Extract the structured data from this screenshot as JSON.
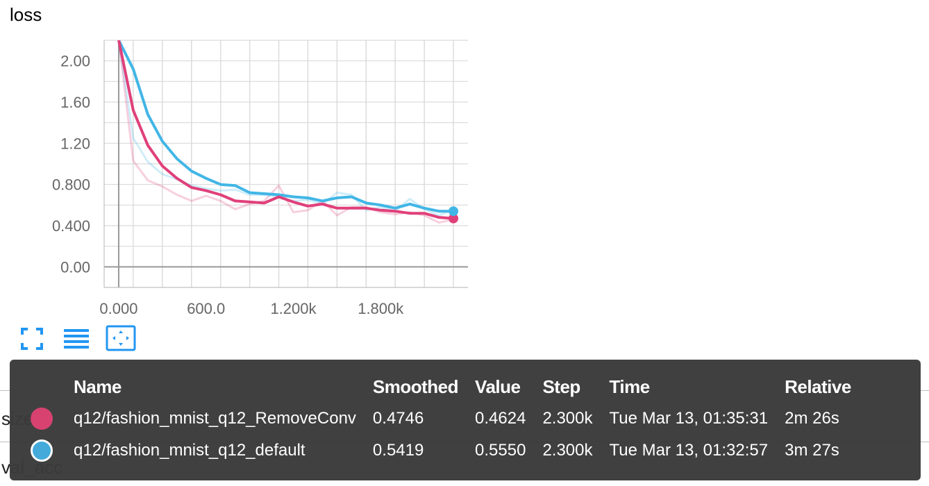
{
  "card": {
    "title": "loss"
  },
  "chart_data": {
    "type": "line",
    "title": "loss",
    "xlabel": "",
    "ylabel": "",
    "xlim": [
      -100,
      2400
    ],
    "ylim": [
      -0.2,
      2.2
    ],
    "x_ticks": [
      "0.000",
      "600.0",
      "1.200k",
      "1.800k"
    ],
    "y_ticks": [
      "2.00",
      "1.60",
      "1.20",
      "0.800",
      "0.400",
      "0.00"
    ],
    "x_tick_values": [
      0,
      600,
      1200,
      1800
    ],
    "y_tick_values": [
      2.0,
      1.6,
      1.2,
      0.8,
      0.4,
      0.0
    ],
    "grid": true,
    "series": [
      {
        "name": "q12/fashion_mnist_q12_RemoveConv",
        "color": "#e0407a",
        "x": [
          0,
          100,
          200,
          300,
          400,
          500,
          600,
          700,
          800,
          900,
          1000,
          1100,
          1200,
          1300,
          1400,
          1500,
          1600,
          1700,
          1800,
          1900,
          2000,
          2100,
          2200,
          2300
        ],
        "raw": [
          2.2,
          1.03,
          0.84,
          0.78,
          0.7,
          0.64,
          0.69,
          0.64,
          0.56,
          0.61,
          0.64,
          0.79,
          0.53,
          0.55,
          0.64,
          0.5,
          0.58,
          0.58,
          0.53,
          0.51,
          0.53,
          0.5,
          0.43,
          0.46
        ],
        "smoothed": [
          2.2,
          1.52,
          1.18,
          0.98,
          0.86,
          0.77,
          0.74,
          0.7,
          0.64,
          0.63,
          0.62,
          0.68,
          0.63,
          0.59,
          0.61,
          0.57,
          0.57,
          0.57,
          0.55,
          0.54,
          0.52,
          0.52,
          0.48,
          0.47
        ]
      },
      {
        "name": "q12/fashion_mnist_q12_default",
        "color": "#41b6e6",
        "x": [
          0,
          100,
          200,
          300,
          400,
          500,
          600,
          700,
          800,
          900,
          1000,
          1100,
          1200,
          1300,
          1400,
          1500,
          1600,
          1700,
          1800,
          1900,
          2000,
          2100,
          2200,
          2300
        ],
        "raw": [
          2.2,
          1.25,
          1.02,
          0.9,
          0.85,
          0.79,
          0.76,
          0.74,
          0.75,
          0.7,
          0.7,
          0.68,
          0.64,
          0.65,
          0.61,
          0.72,
          0.7,
          0.55,
          0.58,
          0.54,
          0.66,
          0.56,
          0.5,
          0.555
        ],
        "smoothed": [
          2.2,
          1.92,
          1.48,
          1.22,
          1.05,
          0.93,
          0.86,
          0.8,
          0.79,
          0.72,
          0.71,
          0.7,
          0.68,
          0.67,
          0.64,
          0.67,
          0.68,
          0.62,
          0.6,
          0.57,
          0.61,
          0.57,
          0.54,
          0.54
        ]
      }
    ]
  },
  "toolbar": {
    "fullscreen_icon": "fullscreen-icon",
    "data_icon": "list-icon",
    "fit_icon": "fit-domain-icon"
  },
  "background_rows": [
    {
      "label": "size"
    },
    {
      "label": "val_acc"
    }
  ],
  "tooltip": {
    "headers": {
      "name": "Name",
      "smoothed": "Smoothed",
      "value": "Value",
      "step": "Step",
      "time": "Time",
      "relative": "Relative"
    },
    "rows": [
      {
        "color": "#d63c6d",
        "name": "q12/fashion_mnist_q12_RemoveConv",
        "smoothed": "0.4746",
        "value": "0.4624",
        "step": "2.300k",
        "time": "Tue Mar 13, 01:35:31",
        "relative": "2m 26s"
      },
      {
        "color": "#3da8d8",
        "name": "q12/fashion_mnist_q12_default",
        "smoothed": "0.5419",
        "value": "0.5550",
        "step": "2.300k",
        "time": "Tue Mar 13, 01:32:57",
        "relative": "3m 27s"
      }
    ]
  }
}
